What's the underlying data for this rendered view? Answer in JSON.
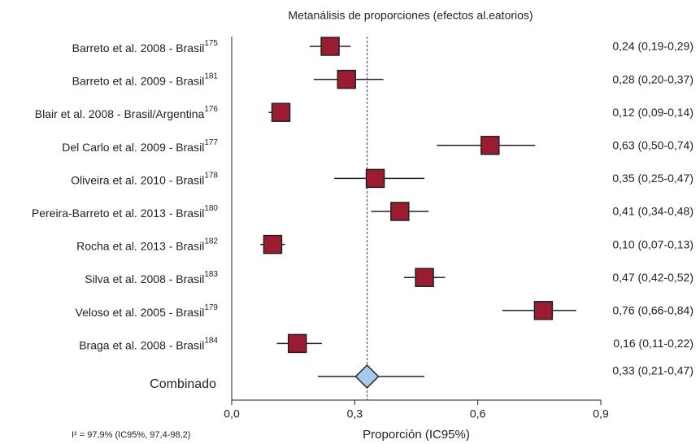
{
  "chart_data": {
    "type": "forest",
    "title": "Metanálisis de proporciones (efectos al.eatorios)",
    "xlabel": "Proporción (IC95%)",
    "note": "I² = 97,9% (IC95%, 97,4-98,2)",
    "categories": [
      "Barreto et al. 2008 - Brasil",
      "Barreto et al. 2009 - Brasil",
      "Blair et al. 2008 - Brasil/Argentina",
      "Del Carlo et al. 2009 -  Brasil",
      "Oliveira et al. 2010 - Brasil",
      "Pereira-Barreto et al. 2013 - Brasil",
      "Rocha et al. 2013 - Brasil",
      "Silva et al. 2008 - Brasil",
      "Veloso et al. 2005 - Brasil",
      "Braga et al. 2008 - Brasil"
    ],
    "refs": [
      "175",
      "181",
      "176",
      "177",
      "178",
      "180",
      "182",
      "183",
      "179",
      "184"
    ],
    "values": [
      0.24,
      0.28,
      0.12,
      0.63,
      0.35,
      0.41,
      0.1,
      0.47,
      0.76,
      0.16
    ],
    "lower": [
      0.19,
      0.2,
      0.09,
      0.5,
      0.25,
      0.34,
      0.07,
      0.42,
      0.66,
      0.11
    ],
    "upper": [
      0.29,
      0.37,
      0.14,
      0.74,
      0.47,
      0.48,
      0.13,
      0.52,
      0.84,
      0.22
    ],
    "value_labels": [
      "0,24 (0,19-0,29)",
      "0,28 (0,20-0,37)",
      "0,12 (0,09-0,14)",
      "0,63 (0,50-0,74)",
      "0,35 (0,25-0,47)",
      "0,41 (0,34-0,48)",
      "0,10 (0,07-0,13)",
      "0,47 (0,42-0,52)",
      "0,76 (0,66-0,84)",
      "0,16 (0,11-0,22)"
    ],
    "color": "#9b1b30",
    "pooled": {
      "label": "Combinado",
      "value": 0.33,
      "lower": 0.21,
      "upper": 0.47,
      "value_label": "0,33 (0,21-0,47)",
      "color": "#a9c8ec"
    },
    "xlim": [
      0,
      0.9
    ],
    "xticks": [
      {
        "value": 0,
        "label": "0,0"
      },
      {
        "value": 0.3,
        "label": "0,3"
      },
      {
        "value": 0.6,
        "label": "0,6"
      },
      {
        "value": 0.9,
        "label": "0,9"
      }
    ]
  }
}
